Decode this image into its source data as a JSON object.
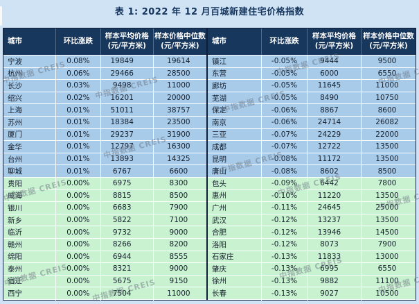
{
  "title": "表 1: 2022 年 12 月百城新建住宅价格指数",
  "watermark_text": "中指数据 CREIS",
  "colors": {
    "page_bg": "#cfe3f4",
    "header_bg": "#17375c",
    "row_blue": "#a8cbea",
    "row_green": "#c9f2d0",
    "title_color": "#16355d"
  },
  "chart_data": {
    "type": "table",
    "title": "表 1: 2022 年 12 月百城新建住宅价格指数",
    "columns": [
      {
        "key": "city",
        "label": "城市",
        "sub": ""
      },
      {
        "key": "mom",
        "label": "环比涨跌",
        "sub": ""
      },
      {
        "key": "avg",
        "label": "样本平均价格",
        "sub": "(元/平方米)"
      },
      {
        "key": "median",
        "label": "样本价格中位数",
        "sub": "(元/平方米)"
      }
    ],
    "left_rows": [
      {
        "city": "宁波",
        "mom": "0.08%",
        "avg": "19849",
        "median": "19614",
        "tone": "blue"
      },
      {
        "city": "杭州",
        "mom": "0.06%",
        "avg": "29466",
        "median": "28500",
        "tone": "blue"
      },
      {
        "city": "长沙",
        "mom": "0.03%",
        "avg": "9498",
        "median": "11000",
        "tone": "blue"
      },
      {
        "city": "绍兴",
        "mom": "0.02%",
        "avg": "16201",
        "median": "20000",
        "tone": "blue"
      },
      {
        "city": "上海",
        "mom": "0.01%",
        "avg": "51011",
        "median": "38757",
        "tone": "blue"
      },
      {
        "city": "苏州",
        "mom": "0.01%",
        "avg": "18384",
        "median": "23500",
        "tone": "blue"
      },
      {
        "city": "厦门",
        "mom": "0.01%",
        "avg": "29237",
        "median": "31900",
        "tone": "blue"
      },
      {
        "city": "金华",
        "mom": "0.01%",
        "avg": "12797",
        "median": "16300",
        "tone": "blue"
      },
      {
        "city": "台州",
        "mom": "0.01%",
        "avg": "13893",
        "median": "14325",
        "tone": "blue"
      },
      {
        "city": "聊城",
        "mom": "0.01%",
        "avg": "6767",
        "median": "6600",
        "tone": "blue"
      },
      {
        "city": "贵阳",
        "mom": "0.00%",
        "avg": "6975",
        "median": "8300",
        "tone": "green"
      },
      {
        "city": "威海",
        "mom": "0.00%",
        "avg": "8815",
        "median": "8500",
        "tone": "green"
      },
      {
        "city": "银川",
        "mom": "0.00%",
        "avg": "6683",
        "median": "7900",
        "tone": "green"
      },
      {
        "city": "新乡",
        "mom": "0.00%",
        "avg": "5822",
        "median": "7100",
        "tone": "green"
      },
      {
        "city": "临沂",
        "mom": "0.00%",
        "avg": "9732",
        "median": "9000",
        "tone": "green"
      },
      {
        "city": "赣州",
        "mom": "0.00%",
        "avg": "8266",
        "median": "8200",
        "tone": "green"
      },
      {
        "city": "绵阳",
        "mom": "0.00%",
        "avg": "6944",
        "median": "8555",
        "tone": "green"
      },
      {
        "city": "泰州",
        "mom": "0.00%",
        "avg": "8321",
        "median": "9000",
        "tone": "green"
      },
      {
        "city": "宿迁",
        "mom": "0.00%",
        "avg": "5675",
        "median": "9150",
        "tone": "green"
      },
      {
        "city": "西宁",
        "mom": "0.00%",
        "avg": "7504",
        "median": "11000",
        "tone": "green"
      }
    ],
    "right_rows": [
      {
        "city": "镇江",
        "mom": "-0.05%",
        "avg": "9444",
        "median": "9500",
        "tone": "blue"
      },
      {
        "city": "东营",
        "mom": "-0.05%",
        "avg": "6000",
        "median": "6550",
        "tone": "blue"
      },
      {
        "city": "廊坊",
        "mom": "-0.05%",
        "avg": "11645",
        "median": "11000",
        "tone": "blue"
      },
      {
        "city": "芜湖",
        "mom": "-0.05%",
        "avg": "8490",
        "median": "10750",
        "tone": "blue"
      },
      {
        "city": "保定",
        "mom": "-0.06%",
        "avg": "8867",
        "median": "8600",
        "tone": "blue"
      },
      {
        "city": "南京",
        "mom": "-0.06%",
        "avg": "24714",
        "median": "26082",
        "tone": "blue"
      },
      {
        "city": "三亚",
        "mom": "-0.07%",
        "avg": "24229",
        "median": "22000",
        "tone": "blue"
      },
      {
        "city": "成都",
        "mom": "-0.07%",
        "avg": "12722",
        "median": "13500",
        "tone": "blue"
      },
      {
        "city": "昆明",
        "mom": "-0.08%",
        "avg": "11172",
        "median": "13500",
        "tone": "blue"
      },
      {
        "city": "唐山",
        "mom": "-0.08%",
        "avg": "8602",
        "median": "8500",
        "tone": "blue"
      },
      {
        "city": "包头",
        "mom": "-0.09%",
        "avg": "6442",
        "median": "7800",
        "tone": "green"
      },
      {
        "city": "惠州",
        "mom": "-0.10%",
        "avg": "11220",
        "median": "13500",
        "tone": "green"
      },
      {
        "city": "广州",
        "mom": "-0.11%",
        "avg": "24645",
        "median": "25000",
        "tone": "green"
      },
      {
        "city": "武汉",
        "mom": "-0.12%",
        "avg": "13237",
        "median": "13500",
        "tone": "green"
      },
      {
        "city": "合肥",
        "mom": "-0.12%",
        "avg": "13946",
        "median": "14500",
        "tone": "green"
      },
      {
        "city": "洛阳",
        "mom": "-0.12%",
        "avg": "8073",
        "median": "7900",
        "tone": "green"
      },
      {
        "city": "石家庄",
        "mom": "-0.13%",
        "avg": "11833",
        "median": "13000",
        "tone": "green"
      },
      {
        "city": "肇庆",
        "mom": "-0.13%",
        "avg": "6995",
        "median": "6550",
        "tone": "green"
      },
      {
        "city": "徐州",
        "mom": "-0.13%",
        "avg": "9882",
        "median": "11100",
        "tone": "green"
      },
      {
        "city": "长春",
        "mom": "-0.13%",
        "avg": "9027",
        "median": "10500",
        "tone": "green"
      }
    ]
  }
}
